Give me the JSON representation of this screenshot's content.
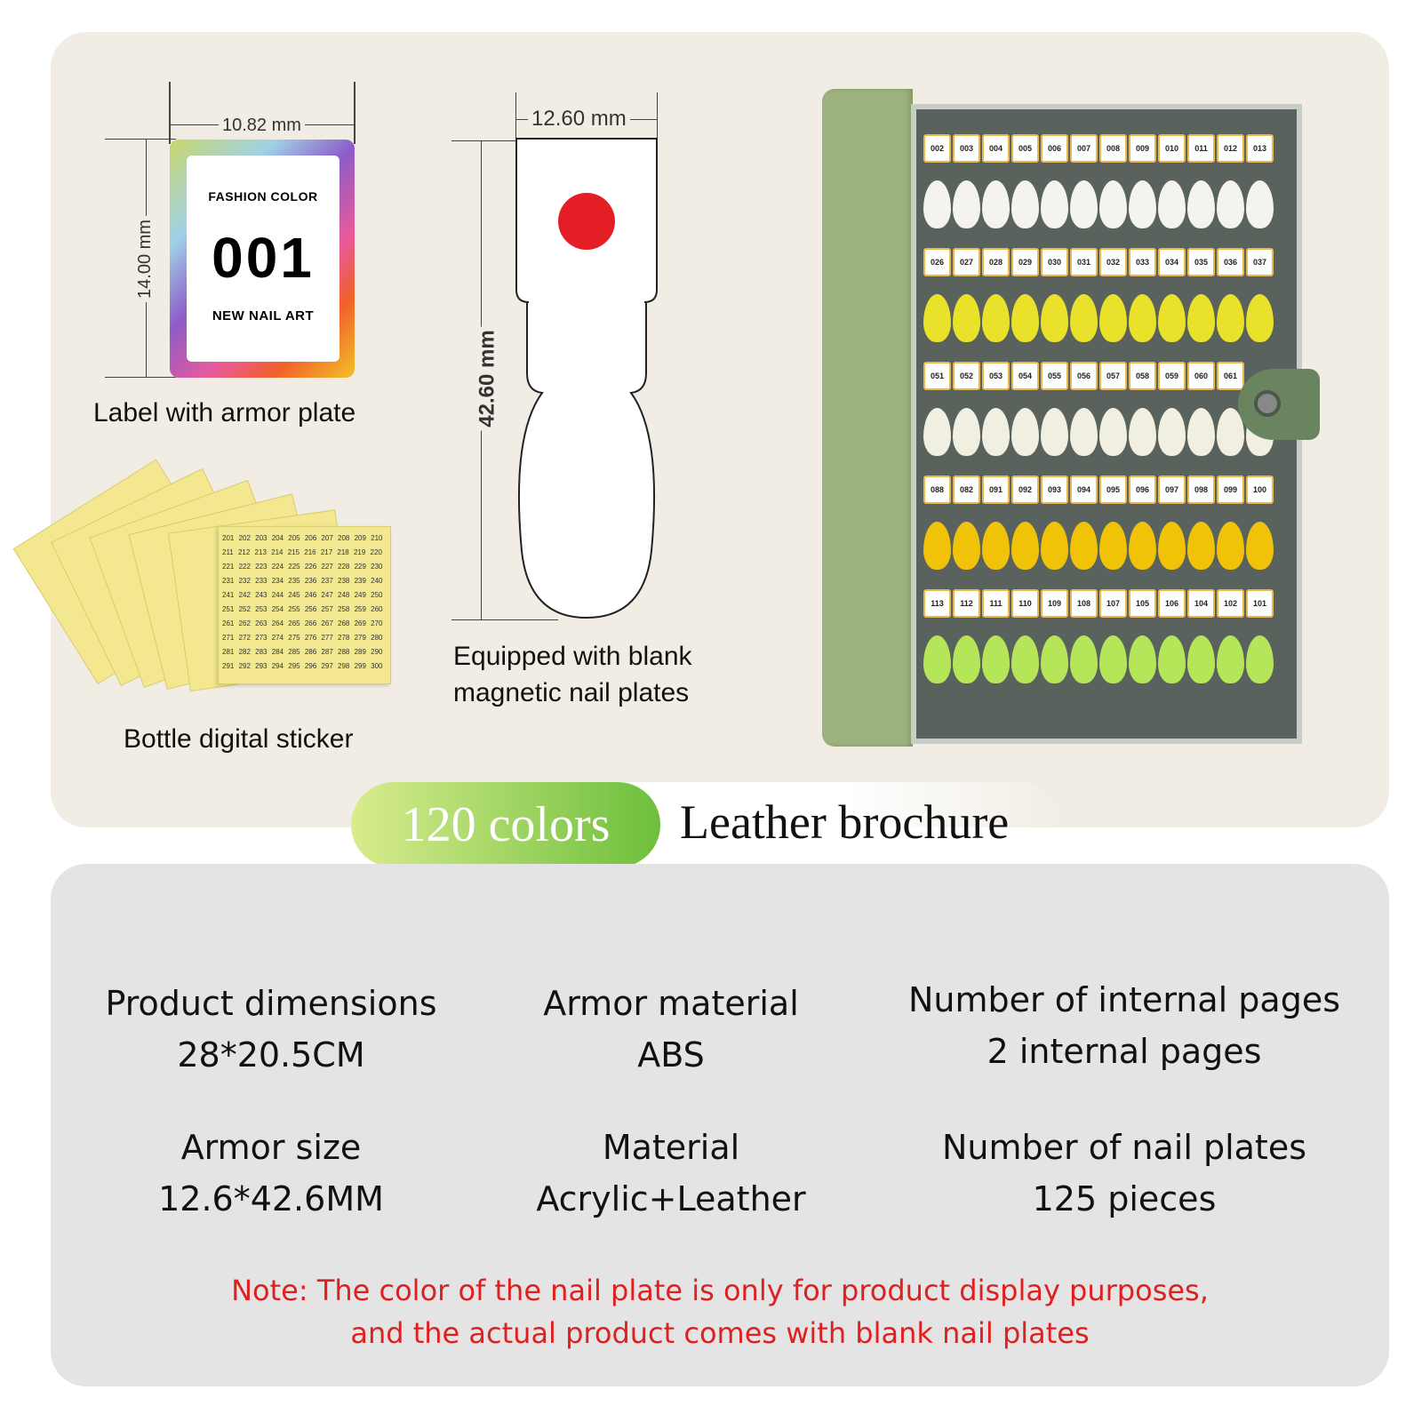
{
  "label_diagram": {
    "width": "10.82 mm",
    "height": "14.00 mm",
    "top_text": "FASHION COLOR",
    "number": "001",
    "bottom_text": "NEW NAIL ART",
    "caption": "Label with armor plate"
  },
  "sticker": {
    "caption": "Bottle digital sticker",
    "sheet_text": "201 202 203 204 205 206 207 208 209 210 211 212 213 214 215 216 217 218 219 220 221 222 223 224 225 226 227 228 229 230 231 232 233 234 235 236 237 238 239 240 241 242 243 244 245 246 247 248 249 250 251 252 253 254 255 256 257 258 259 260 261 262 263 264 265 266 267 268 269 270 271 272 273 274 275 276 277 278 279 280 281 282 283 284 285 286 287 288 289 290 291 292 293 294 295 296 297 298 299 300"
  },
  "plate_diagram": {
    "width": "12.60 mm",
    "height": "42.60 mm",
    "caption_line1": "Equipped with blank",
    "caption_line2": "magnetic nail plates",
    "dot_color": "#e31e24"
  },
  "brochure_rows": [
    {
      "labels": [
        "002",
        "003",
        "004",
        "005",
        "006",
        "007",
        "008",
        "009",
        "010",
        "011",
        "012",
        "013"
      ],
      "nail_color": "#f4f3ee"
    },
    {
      "labels": [
        "026",
        "027",
        "028",
        "029",
        "030",
        "031",
        "032",
        "033",
        "034",
        "035",
        "036",
        "037"
      ],
      "nail_color": "#e9e12a"
    },
    {
      "labels": [
        "051",
        "052",
        "053",
        "054",
        "055",
        "056",
        "057",
        "058",
        "059",
        "060",
        "061"
      ],
      "nail_color": "#f1efe2"
    },
    {
      "labels": [
        "088",
        "082",
        "091",
        "092",
        "093",
        "094",
        "095",
        "096",
        "097",
        "098",
        "099",
        "100"
      ],
      "nail_color": "#f0c208"
    },
    {
      "labels": [
        "113",
        "112",
        "111",
        "110",
        "109",
        "108",
        "107",
        "105",
        "106",
        "104",
        "102",
        "101"
      ],
      "nail_color": "#b5e65a"
    }
  ],
  "banner": {
    "highlight": "120 colors",
    "title": "Leather brochure"
  },
  "specs": [
    {
      "label": "Product dimensions",
      "value": "28*20.5CM"
    },
    {
      "label": "Armor material",
      "value": "ABS"
    },
    {
      "label": "Number of internal pages",
      "value": "2 internal pages"
    },
    {
      "label": "Armor size",
      "value": "12.6*42.6MM"
    },
    {
      "label": "Material",
      "value": "Acrylic+Leather"
    },
    {
      "label": "Number of nail plates",
      "value": "125 pieces"
    }
  ],
  "note": {
    "line1": "Note: The color of the nail plate is only for product display purposes,",
    "line2": "and the actual product comes with blank nail plates"
  }
}
